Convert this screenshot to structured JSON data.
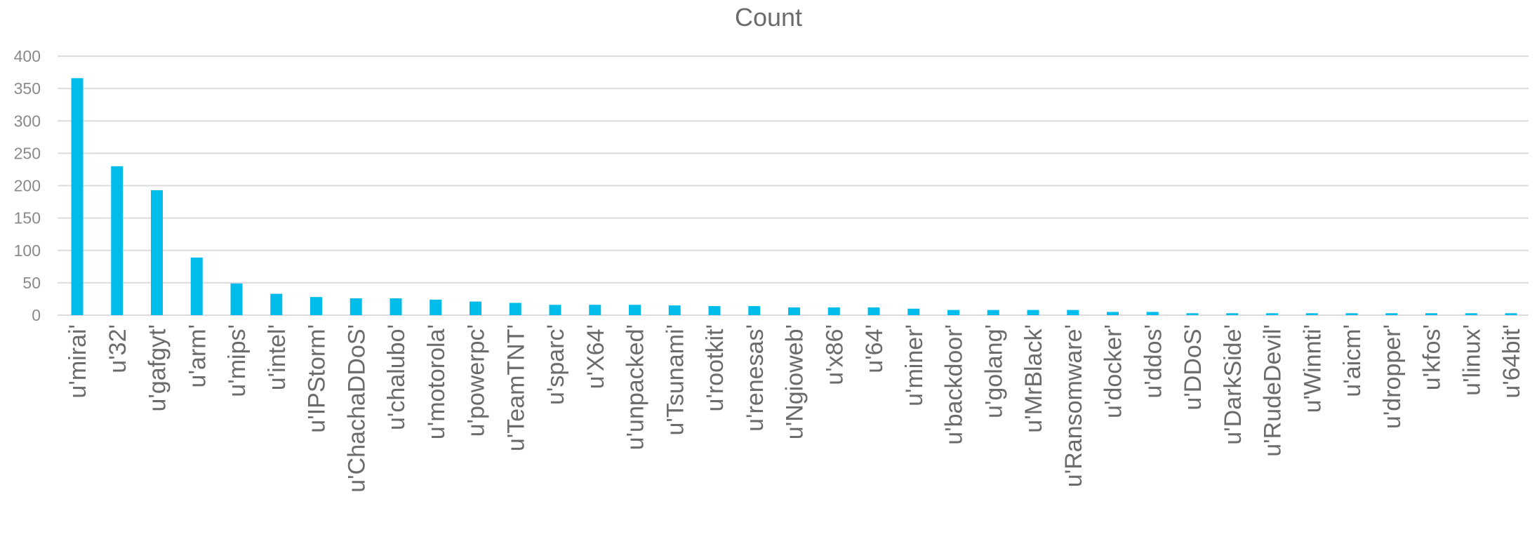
{
  "chart_data": {
    "type": "bar",
    "title": "Count",
    "xlabel": "",
    "ylabel": "",
    "ylim": [
      0,
      400
    ],
    "yticks": [
      0,
      50,
      100,
      150,
      200,
      250,
      300,
      350,
      400
    ],
    "grid": true,
    "bar_color": "#00bceb",
    "categories": [
      "u'mirai'",
      "u'32'",
      "u'gafgyt'",
      "u'arm'",
      "u'mips'",
      "u'intel'",
      "u'IPStorm'",
      "u'ChachaDDoS'",
      "u'chalubo'",
      "u'motorola'",
      "u'powerpc'",
      "u'TeamTNT'",
      "u'sparc'",
      "u'X64'",
      "u'unpacked'",
      "u'Tsunami'",
      "u'rootkit'",
      "u'renesas'",
      "u'Ngioweb'",
      "u'x86'",
      "u'64'",
      "u'miner'",
      "u'backdoor'",
      "u'golang'",
      "u'MrBlack'",
      "u'Ransomware'",
      "u'docker'",
      "u'ddos'",
      "u'DDoS'",
      "u'DarkSide'",
      "u'RudeDevil'",
      "u'Winnti'",
      "u'aicm'",
      "u'dropper'",
      "u'kfos'",
      "u'linux'",
      "u'64bit'"
    ],
    "values": [
      366,
      230,
      193,
      89,
      49,
      33,
      28,
      26,
      26,
      24,
      21,
      19,
      16,
      16,
      16,
      15,
      14,
      14,
      12,
      12,
      12,
      10,
      8,
      8,
      8,
      8,
      5,
      5,
      3,
      3,
      3,
      3,
      3,
      3,
      3,
      3,
      3
    ]
  }
}
